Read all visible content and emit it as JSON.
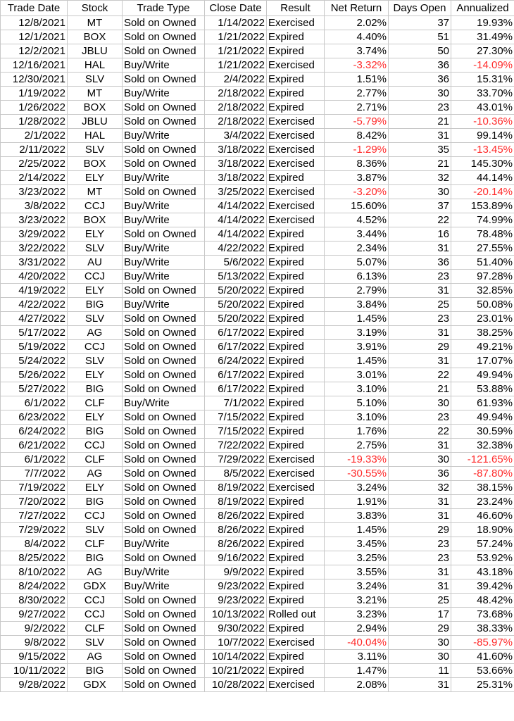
{
  "columns": [
    "Trade Date",
    "Stock",
    "Trade Type",
    "Close Date",
    "Result",
    "Net Return",
    "Days Open",
    "Annualized"
  ],
  "colors": {
    "negative": "#ff2a2a",
    "text": "#000000",
    "grid": "#c8c8c8"
  },
  "rows": [
    [
      "12/8/2021",
      "MT",
      "Sold on Owned",
      "1/14/2022",
      "Exercised",
      "2.02%",
      "37",
      "19.93%"
    ],
    [
      "12/1/2021",
      "BOX",
      "Sold on Owned",
      "1/21/2022",
      "Expired",
      "4.40%",
      "51",
      "31.49%"
    ],
    [
      "12/2/2021",
      "JBLU",
      "Sold on Owned",
      "1/21/2022",
      "Expired",
      "3.74%",
      "50",
      "27.30%"
    ],
    [
      "12/16/2021",
      "HAL",
      "Buy/Write",
      "1/21/2022",
      "Exercised",
      "-3.32%",
      "36",
      "-14.09%"
    ],
    [
      "12/30/2021",
      "SLV",
      "Sold on Owned",
      "2/4/2022",
      "Expired",
      "1.51%",
      "36",
      "15.31%"
    ],
    [
      "1/19/2022",
      "MT",
      "Buy/Write",
      "2/18/2022",
      "Expired",
      "2.77%",
      "30",
      "33.70%"
    ],
    [
      "1/26/2022",
      "BOX",
      "Sold on Owned",
      "2/18/2022",
      "Expired",
      "2.71%",
      "23",
      "43.01%"
    ],
    [
      "1/28/2022",
      "JBLU",
      "Sold on Owned",
      "2/18/2022",
      "Exercised",
      "-5.79%",
      "21",
      "-10.36%"
    ],
    [
      "2/1/2022",
      "HAL",
      "Buy/Write",
      "3/4/2022",
      "Exercised",
      "8.42%",
      "31",
      "99.14%"
    ],
    [
      "2/11/2022",
      "SLV",
      "Sold on Owned",
      "3/18/2022",
      "Exercised",
      "-1.29%",
      "35",
      "-13.45%"
    ],
    [
      "2/25/2022",
      "BOX",
      "Sold on Owned",
      "3/18/2022",
      "Exercised",
      "8.36%",
      "21",
      "145.30%"
    ],
    [
      "2/14/2022",
      "ELY",
      "Buy/Write",
      "3/18/2022",
      "Expired",
      "3.87%",
      "32",
      "44.14%"
    ],
    [
      "3/23/2022",
      "MT",
      "Sold on Owned",
      "3/25/2022",
      "Exercised",
      "-3.20%",
      "30",
      "-20.14%"
    ],
    [
      "3/8/2022",
      "CCJ",
      "Buy/Write",
      "4/14/2022",
      "Exercised",
      "15.60%",
      "37",
      "153.89%"
    ],
    [
      "3/23/2022",
      "BOX",
      "Buy/Write",
      "4/14/2022",
      "Exercised",
      "4.52%",
      "22",
      "74.99%"
    ],
    [
      "3/29/2022",
      "ELY",
      "Sold on Owned",
      "4/14/2022",
      "Expired",
      "3.44%",
      "16",
      "78.48%"
    ],
    [
      "3/22/2022",
      "SLV",
      "Buy/Write",
      "4/22/2022",
      "Expired",
      "2.34%",
      "31",
      "27.55%"
    ],
    [
      "3/31/2022",
      "AU",
      "Buy/Write",
      "5/6/2022",
      "Expired",
      "5.07%",
      "36",
      "51.40%"
    ],
    [
      "4/20/2022",
      "CCJ",
      "Buy/Write",
      "5/13/2022",
      "Expired",
      "6.13%",
      "23",
      "97.28%"
    ],
    [
      "4/19/2022",
      "ELY",
      "Sold on Owned",
      "5/20/2022",
      "Expired",
      "2.79%",
      "31",
      "32.85%"
    ],
    [
      "4/22/2022",
      "BIG",
      "Buy/Write",
      "5/20/2022",
      "Expired",
      "3.84%",
      "25",
      "50.08%"
    ],
    [
      "4/27/2022",
      "SLV",
      "Sold on Owned",
      "5/20/2022",
      "Expired",
      "1.45%",
      "23",
      "23.01%"
    ],
    [
      "5/17/2022",
      "AG",
      "Sold on Owned",
      "6/17/2022",
      "Expired",
      "3.19%",
      "31",
      "38.25%"
    ],
    [
      "5/19/2022",
      "CCJ",
      "Sold on Owned",
      "6/17/2022",
      "Expired",
      "3.91%",
      "29",
      "49.21%"
    ],
    [
      "5/24/2022",
      "SLV",
      "Sold on Owned",
      "6/24/2022",
      "Expired",
      "1.45%",
      "31",
      "17.07%"
    ],
    [
      "5/26/2022",
      "ELY",
      "Sold on Owned",
      "6/17/2022",
      "Expired",
      "3.01%",
      "22",
      "49.94%"
    ],
    [
      "5/27/2022",
      "BIG",
      "Sold on Owned",
      "6/17/2022",
      "Expired",
      "3.10%",
      "21",
      "53.88%"
    ],
    [
      "6/1/2022",
      "CLF",
      "Buy/Write",
      "7/1/2022",
      "Expired",
      "5.10%",
      "30",
      "61.93%"
    ],
    [
      "6/23/2022",
      "ELY",
      "Sold on Owned",
      "7/15/2022",
      "Expired",
      "3.10%",
      "23",
      "49.94%"
    ],
    [
      "6/24/2022",
      "BIG",
      "Sold on Owned",
      "7/15/2022",
      "Expired",
      "1.76%",
      "22",
      "30.59%"
    ],
    [
      "6/21/2022",
      "CCJ",
      "Sold on Owned",
      "7/22/2022",
      "Expired",
      "2.75%",
      "31",
      "32.38%"
    ],
    [
      "6/1/2022",
      "CLF",
      "Sold on Owned",
      "7/29/2022",
      "Exercised",
      "-19.33%",
      "30",
      "-121.65%"
    ],
    [
      "7/7/2022",
      "AG",
      "Sold on Owned",
      "8/5/2022",
      "Exercised",
      "-30.55%",
      "36",
      "-87.80%"
    ],
    [
      "7/19/2022",
      "ELY",
      "Sold on Owned",
      "8/19/2022",
      "Exercised",
      "3.24%",
      "32",
      "38.15%"
    ],
    [
      "7/20/2022",
      "BIG",
      "Sold on Owned",
      "8/19/2022",
      "Expired",
      "1.91%",
      "31",
      "23.24%"
    ],
    [
      "7/27/2022",
      "CCJ",
      "Sold on Owned",
      "8/26/2022",
      "Expired",
      "3.83%",
      "31",
      "46.60%"
    ],
    [
      "7/29/2022",
      "SLV",
      "Sold on Owned",
      "8/26/2022",
      "Expired",
      "1.45%",
      "29",
      "18.90%"
    ],
    [
      "8/4/2022",
      "CLF",
      "Buy/Write",
      "8/26/2022",
      "Expired",
      "3.45%",
      "23",
      "57.24%"
    ],
    [
      "8/25/2022",
      "BIG",
      "Sold on Owned",
      "9/16/2022",
      "Expired",
      "3.25%",
      "23",
      "53.92%"
    ],
    [
      "8/10/2022",
      "AG",
      "Buy/Write",
      "9/9/2022",
      "Expired",
      "3.55%",
      "31",
      "43.18%"
    ],
    [
      "8/24/2022",
      "GDX",
      "Buy/Write",
      "9/23/2022",
      "Expired",
      "3.24%",
      "31",
      "39.42%"
    ],
    [
      "8/30/2022",
      "CCJ",
      "Sold on Owned",
      "9/23/2022",
      "Expired",
      "3.21%",
      "25",
      "48.42%"
    ],
    [
      "9/27/2022",
      "CCJ",
      "Sold on Owned",
      "10/13/2022",
      "Rolled out",
      "3.23%",
      "17",
      "73.68%"
    ],
    [
      "9/2/2022",
      "CLF",
      "Sold on Owned",
      "9/30/2022",
      "Expired",
      "2.94%",
      "29",
      "38.33%"
    ],
    [
      "9/8/2022",
      "SLV",
      "Sold on Owned",
      "10/7/2022",
      "Exercised",
      "-40.04%",
      "30",
      "-85.97%"
    ],
    [
      "9/15/2022",
      "AG",
      "Sold on Owned",
      "10/14/2022",
      "Expired",
      "3.11%",
      "30",
      "41.60%"
    ],
    [
      "10/11/2022",
      "BIG",
      "Sold on Owned",
      "10/21/2022",
      "Expired",
      "1.47%",
      "11",
      "53.66%"
    ],
    [
      "9/28/2022",
      "GDX",
      "Sold on Owned",
      "10/28/2022",
      "Exercised",
      "2.08%",
      "31",
      "25.31%"
    ]
  ]
}
